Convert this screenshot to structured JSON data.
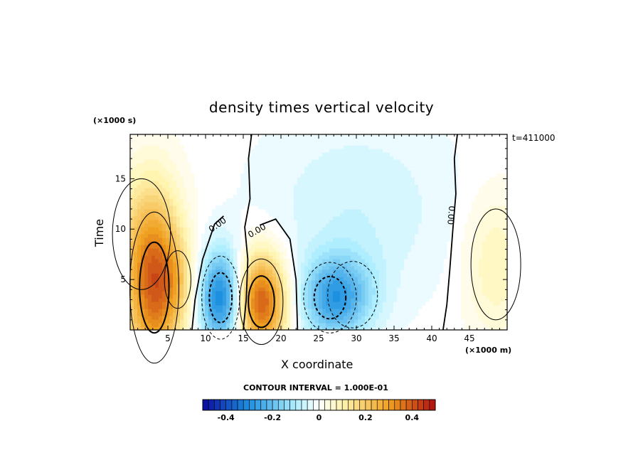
{
  "chart_data": {
    "type": "heatmap",
    "title": "density times vertical velocity",
    "xlabel": "X coordinate",
    "ylabel": "Time",
    "x_unit_label": "(×1000 m)",
    "y_unit_label": "(×1000 s)",
    "time_stamp": "t=411000",
    "xlim": [
      0,
      50
    ],
    "ylim": [
      0,
      19.4
    ],
    "x_ticks": [
      5,
      10,
      15,
      20,
      25,
      30,
      35,
      40,
      45
    ],
    "x_tick_labels": [
      "5",
      "10",
      "15",
      "20",
      "25",
      "30",
      "35",
      "40",
      "45"
    ],
    "y_ticks": [
      5,
      10,
      15
    ],
    "y_tick_labels": [
      "5",
      "10",
      "15"
    ],
    "contour_interval_label": "CONTOUR INTERVAL = 1.000E-01",
    "zero_contour_label": "0.00",
    "colorbar": {
      "range": [
        -0.5,
        0.5
      ],
      "ticks": [
        -0.4,
        -0.2,
        0,
        0.2,
        0.4
      ],
      "tick_labels": [
        "-0.4",
        "-0.2",
        "0",
        "0.2",
        "0.4"
      ]
    },
    "features": [
      {
        "x": 3.2,
        "y": 4.2,
        "sx": 2.6,
        "sy": 6.0,
        "value": 0.36
      },
      {
        "x": 6.3,
        "y": 5.0,
        "sx": 1.6,
        "sy": 2.6,
        "value": 0.08
      },
      {
        "x": 1.5,
        "y": 9.5,
        "sx": 3.5,
        "sy": 5.0,
        "value": 0.08
      },
      {
        "x": 12.0,
        "y": 3.2,
        "sx": 2.0,
        "sy": 3.3,
        "value": -0.32
      },
      {
        "x": 17.4,
        "y": 2.8,
        "sx": 2.3,
        "sy": 3.4,
        "value": 0.4
      },
      {
        "x": 26.5,
        "y": 3.2,
        "sx": 2.8,
        "sy": 2.8,
        "value": -0.2
      },
      {
        "x": 29.5,
        "y": 3.5,
        "sx": 3.0,
        "sy": 3.0,
        "value": -0.1
      },
      {
        "x": 30.0,
        "y": 12.0,
        "sx": 9.0,
        "sy": 6.5,
        "value": -0.06
      },
      {
        "x": 48.5,
        "y": 6.5,
        "sx": 3.0,
        "sy": 5.0,
        "value": 0.09
      }
    ],
    "colors": {
      "neg_strong": "#0a0aa0",
      "neg_mid": "#1e90e0",
      "neg_light": "#aeeefe",
      "zero": "#ffffff",
      "pos_light": "#fff4b0",
      "pos_mid": "#f0a020",
      "pos_strong": "#b01010"
    }
  }
}
